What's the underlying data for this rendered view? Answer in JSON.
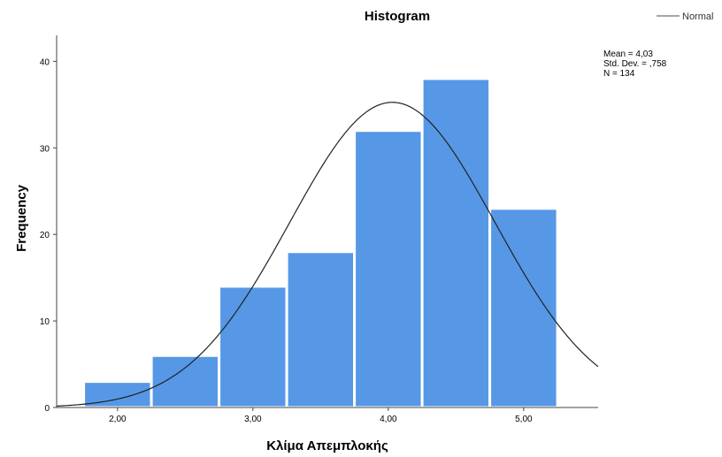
{
  "chart_data": {
    "type": "bar",
    "title": "Histogram",
    "xlabel": "Κλίμα Απεμπλοκής",
    "ylabel": "Frequency",
    "bins": [
      {
        "start": 1.75,
        "end": 2.25,
        "value": 3
      },
      {
        "start": 2.25,
        "end": 2.75,
        "value": 6
      },
      {
        "start": 2.75,
        "end": 3.25,
        "value": 14
      },
      {
        "start": 3.25,
        "end": 3.75,
        "value": 18
      },
      {
        "start": 3.75,
        "end": 4.25,
        "value": 32
      },
      {
        "start": 4.25,
        "end": 4.75,
        "value": 38
      },
      {
        "start": 4.75,
        "end": 5.25,
        "value": 23
      }
    ],
    "xlim": [
      1.55,
      5.55
    ],
    "ylim": [
      0,
      43
    ],
    "x_ticks": [
      {
        "value": 2,
        "label": "2,00"
      },
      {
        "value": 3,
        "label": "3,00"
      },
      {
        "value": 4,
        "label": "4,00"
      },
      {
        "value": 5,
        "label": "5,00"
      }
    ],
    "y_ticks": [
      {
        "value": 0,
        "label": "0"
      },
      {
        "value": 10,
        "label": "10"
      },
      {
        "value": 20,
        "label": "20"
      },
      {
        "value": 30,
        "label": "30"
      },
      {
        "value": 40,
        "label": "40"
      }
    ],
    "normal_curve": {
      "mean": 4.03,
      "sd": 0.758,
      "n": 134,
      "bin_width": 0.5
    },
    "stats": {
      "mean_label": "Mean = 4,03",
      "sd_label": "Std. Dev. = ,758",
      "n_label": "N = 134"
    },
    "legend": {
      "label": "Normal",
      "position": "top-right"
    },
    "colors": {
      "bar": "#5698e6",
      "bar_edge": "#ffffff",
      "curve": "#222222",
      "axis": "#444444"
    },
    "grid": false
  }
}
